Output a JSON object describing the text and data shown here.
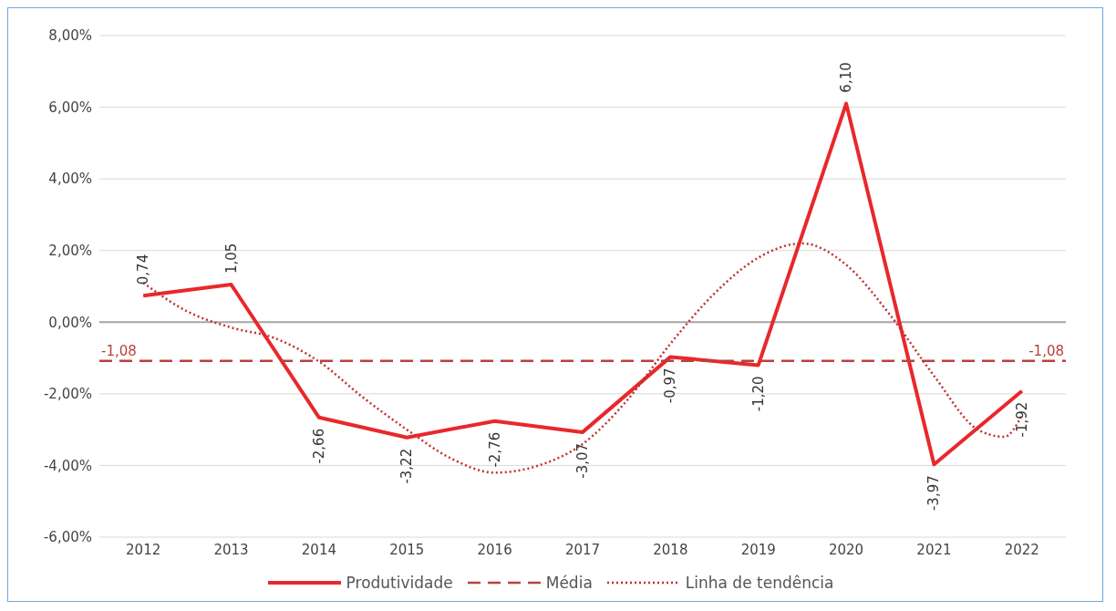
{
  "chart_data": {
    "type": "line",
    "x": [
      2012,
      2013,
      2014,
      2015,
      2016,
      2017,
      2018,
      2019,
      2020,
      2021,
      2022
    ],
    "xlim": [
      2011.5,
      2022.5
    ],
    "xticks": [
      2012,
      2013,
      2014,
      2015,
      2016,
      2017,
      2018,
      2019,
      2020,
      2021,
      2022
    ],
    "ylim": [
      -6,
      8
    ],
    "yticks": [
      {
        "value": -6,
        "label": "-6,00%"
      },
      {
        "value": -4,
        "label": "-4,00%"
      },
      {
        "value": -2,
        "label": "-2,00%"
      },
      {
        "value": 0,
        "label": "0,00%"
      },
      {
        "value": 2,
        "label": "2,00%"
      },
      {
        "value": 4,
        "label": "4,00%"
      },
      {
        "value": 6,
        "label": "6,00%"
      },
      {
        "value": 8,
        "label": "8,00%"
      }
    ],
    "grid": "y",
    "legend": "bottom",
    "marker": "none",
    "series": [
      {
        "name": "Produtividade",
        "color": "#e8282b",
        "line_style": "solid",
        "values": [
          0.74,
          1.05,
          -2.66,
          -3.22,
          -2.76,
          -3.07,
          -0.97,
          -1.2,
          6.1,
          -3.97,
          -1.92
        ],
        "value_labels": [
          "0,74",
          "1,05",
          "-2,66",
          "-3,22",
          "-2,76",
          "-3,07",
          "-0,97",
          "-1,20",
          "6,10",
          "-3,97",
          "-1,92"
        ]
      },
      {
        "name": "Média",
        "color": "#b8413c",
        "line_style": "dashed",
        "x": [
          2011.5,
          2022.5
        ],
        "values": [
          -1.08,
          -1.08
        ],
        "value_labels": [
          "-1,08",
          "-1,08"
        ]
      },
      {
        "name": "Linha de tendência",
        "color": "#c0302c",
        "line_style": "dotted",
        "x": [
          2012,
          2012.5,
          2013,
          2013.5,
          2014,
          2014.5,
          2015,
          2015.5,
          2016,
          2016.5,
          2017,
          2017.5,
          2018,
          2018.5,
          2019,
          2019.5,
          2020,
          2020.5,
          2021,
          2021.5,
          2021.8,
          2022
        ],
        "values": [
          1.1,
          0.3,
          -0.15,
          -0.45,
          -1.1,
          -2.1,
          -3.0,
          -3.8,
          -4.2,
          -4.0,
          -3.4,
          -2.2,
          -0.6,
          0.8,
          1.8,
          2.2,
          1.6,
          0.2,
          -1.5,
          -3.0,
          -3.2,
          -2.6
        ]
      }
    ]
  }
}
